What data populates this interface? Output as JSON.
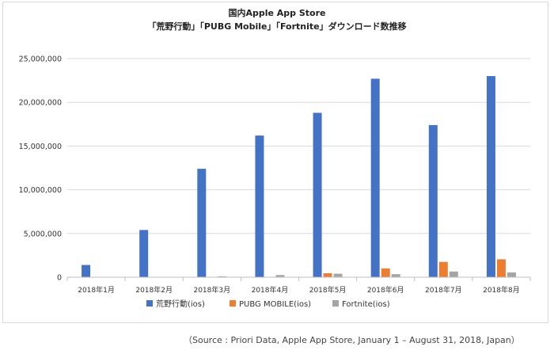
{
  "chart_data": {
    "type": "bar",
    "title": "国内Apple App Store",
    "subtitle": "「荒野行動」「PUBG Mobile」「Fortnite」ダウンロード数推移",
    "categories": [
      "2018年1月",
      "2018年2月",
      "2018年3月",
      "2018年4月",
      "2018年5月",
      "2018年6月",
      "2018年7月",
      "2018年8月"
    ],
    "ylim": [
      0,
      25000000
    ],
    "yticks": [
      "0",
      "5,000,000",
      "10,000,000",
      "15,000,000",
      "20,000,000",
      "25,000,000"
    ],
    "ytick_values": [
      0,
      5000000,
      10000000,
      15000000,
      20000000,
      25000000
    ],
    "grid": true,
    "legend_position": "bottom",
    "series": [
      {
        "name": "荒野行動(ios)",
        "color": "#4472C4",
        "values": [
          1400000,
          5400000,
          12400000,
          16200000,
          18800000,
          22700000,
          17400000,
          23000000
        ]
      },
      {
        "name": "PUBG MOBILE(ios)",
        "color": "#ED7D31",
        "values": [
          0,
          0,
          0,
          0,
          450000,
          1000000,
          1750000,
          2050000
        ]
      },
      {
        "name": "Fortnite(ios)",
        "color": "#A5A5A5",
        "values": [
          0,
          0,
          100000,
          250000,
          400000,
          350000,
          650000,
          550000
        ]
      }
    ]
  },
  "source_note": "（Source : Priori Data, Apple App Store, January 1 – August 31, 2018, Japan）"
}
